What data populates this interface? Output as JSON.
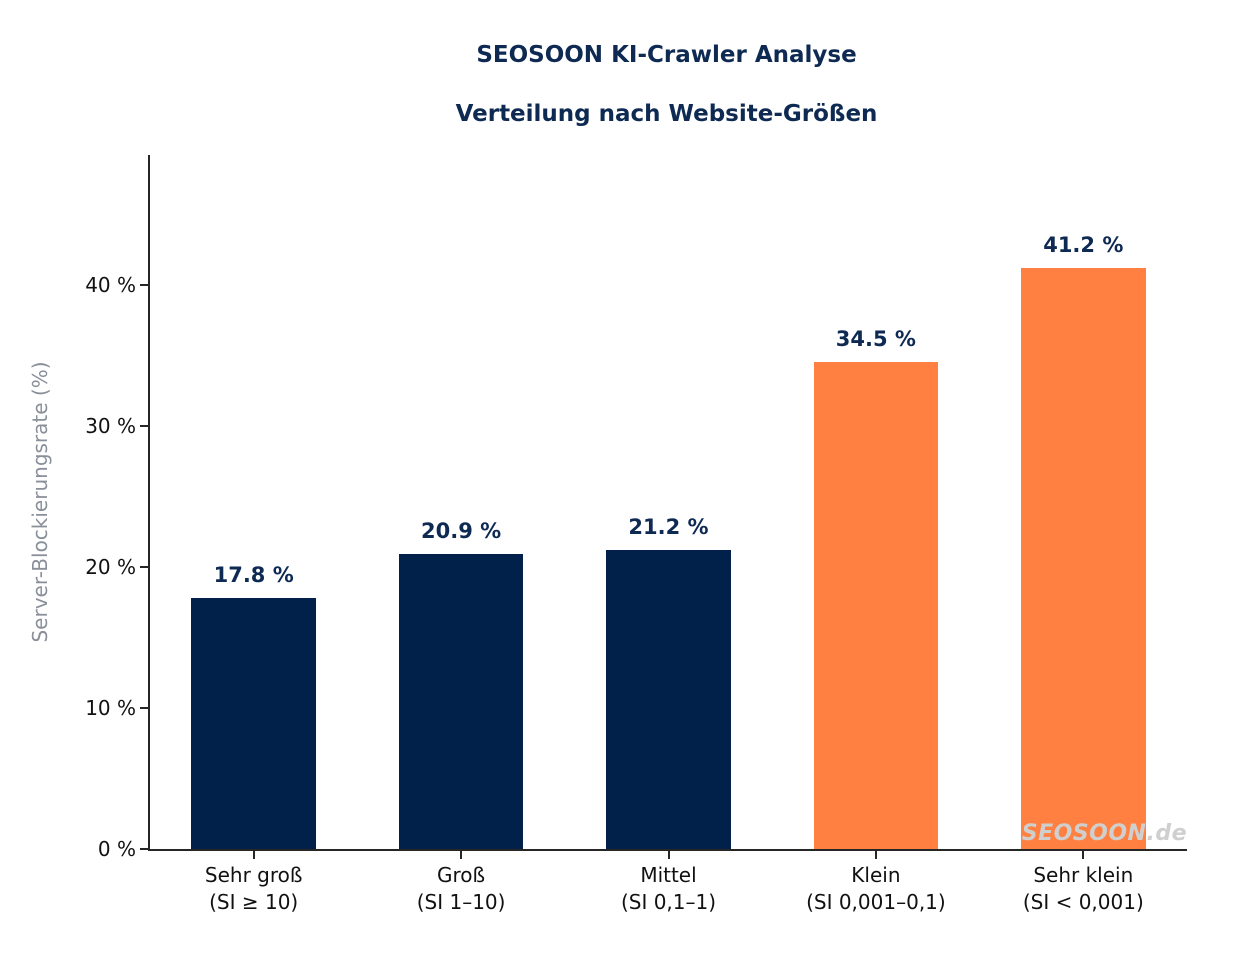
{
  "chart_data": {
    "type": "bar",
    "title": "SEOSOON KI-Crawler Analyse",
    "subtitle": "Verteilung nach Website-Größen",
    "xlabel": "",
    "ylabel": "Server-Blockierungsrate (%)",
    "ylim": [
      0,
      49.2
    ],
    "yticks": [
      {
        "value": 0,
        "label": "0 %"
      },
      {
        "value": 10,
        "label": "10 %"
      },
      {
        "value": 20,
        "label": "20 %"
      },
      {
        "value": 30,
        "label": "30 %"
      },
      {
        "value": 40,
        "label": "40 %"
      }
    ],
    "grid": false,
    "legend_position": "none",
    "categories": [
      {
        "label": "Sehr groß",
        "sublabel": "(SI ≥ 10)"
      },
      {
        "label": "Groß",
        "sublabel": "(SI 1–10)"
      },
      {
        "label": "Mittel",
        "sublabel": "(SI 0,1–1)"
      },
      {
        "label": "Klein",
        "sublabel": "(SI 0,001–0,1)"
      },
      {
        "label": "Sehr klein",
        "sublabel": "(SI < 0,001)"
      }
    ],
    "values": [
      17.8,
      20.9,
      21.2,
      34.5,
      41.2
    ],
    "value_labels": [
      "17.8 %",
      "20.9 %",
      "21.2 %",
      "34.5 %",
      "41.2 %"
    ],
    "bar_colors": [
      "#02214a",
      "#02214a",
      "#02214a",
      "#ff8040",
      "#ff8040"
    ],
    "colors": {
      "navy": "#02214a",
      "orange": "#ff8040",
      "title_text": "#0e2a52",
      "axis": "#262626",
      "ylabel_gray": "#8a909a",
      "watermark_gray": "#cfcfcf"
    }
  },
  "watermark": {
    "text": "SEOSOON.de"
  }
}
